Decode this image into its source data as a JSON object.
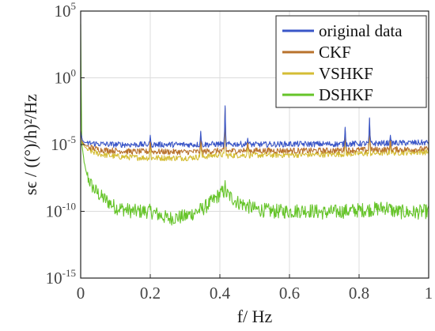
{
  "chart_data": {
    "type": "line",
    "xlabel": "f/ Hz",
    "ylabel": "sϵ / ((°)/h)²/Hz",
    "xlim": [
      0,
      1
    ],
    "ylim": [
      1e-15,
      100000.0
    ],
    "yscale": "log",
    "grid": true,
    "legend_position": "top-right",
    "x_ticks": [
      "0",
      "0.2",
      "0.4",
      "0.6",
      "0.8",
      "1"
    ],
    "y_ticks": [
      {
        "base": "10",
        "exp": "5"
      },
      {
        "base": "10",
        "exp": "0"
      },
      {
        "base": "10",
        "exp": "-5"
      },
      {
        "base": "10",
        "exp": "-10"
      },
      {
        "base": "10",
        "exp": "-15"
      }
    ],
    "series": [
      {
        "name": "original data",
        "color": "#3a56c8",
        "x": [
          0,
          0.005,
          0.01,
          0.02,
          0.04,
          0.06,
          0.1,
          0.15,
          0.2,
          0.3,
          0.35,
          0.4,
          0.415,
          0.45,
          0.5,
          0.6,
          0.7,
          0.76,
          0.83,
          0.9,
          1.0
        ],
        "y": [
          0.0001,
          2e-05,
          1.5e-05,
          1.3e-05,
          1.2e-05,
          1.1e-05,
          1e-05,
          1e-05,
          1e-05,
          1e-05,
          1e-05,
          1.1e-05,
          1e-05,
          1.1e-05,
          1e-05,
          1.1e-05,
          1.1e-05,
          1.1e-05,
          1.2e-05,
          1.3e-05,
          1.4e-05
        ],
        "peaks": [
          [
            0.2,
            5e-05
          ],
          [
            0.345,
            0.0001
          ],
          [
            0.415,
            0.008
          ],
          [
            0.48,
            3e-05
          ],
          [
            0.76,
            0.0002
          ],
          [
            0.83,
            0.001
          ],
          [
            0.89,
            5e-05
          ]
        ]
      },
      {
        "name": "CKF",
        "color": "#b8722c",
        "x": [
          0,
          0.005,
          0.01,
          0.02,
          0.04,
          0.06,
          0.1,
          0.15,
          0.2,
          0.3,
          0.35,
          0.4,
          0.415,
          0.45,
          0.5,
          0.6,
          0.7,
          0.76,
          0.83,
          0.9,
          1.0
        ],
        "y": [
          0.0001,
          1.5e-05,
          1e-05,
          7e-06,
          5e-06,
          4e-06,
          3.5e-06,
          3e-06,
          3e-06,
          2.8e-06,
          3e-06,
          3.5e-06,
          3.2e-06,
          3.5e-06,
          3.5e-06,
          3.5e-06,
          3.5e-06,
          3.8e-06,
          4e-06,
          4.3e-06,
          4.5e-06
        ],
        "peaks": [
          [
            0.2,
            3e-05
          ],
          [
            0.345,
            8e-05
          ],
          [
            0.415,
            0.006
          ],
          [
            0.48,
            2e-05
          ],
          [
            0.76,
            0.00015
          ],
          [
            0.83,
            0.0008
          ],
          [
            0.89,
            3e-05
          ]
        ]
      },
      {
        "name": "VSHKF",
        "color": "#d4bd35",
        "x": [
          0,
          0.005,
          0.01,
          0.02,
          0.04,
          0.06,
          0.1,
          0.15,
          0.2,
          0.3,
          0.35,
          0.4,
          0.415,
          0.45,
          0.5,
          0.6,
          0.7,
          0.76,
          0.83,
          0.9,
          1.0
        ],
        "y": [
          0.0001,
          1.2e-05,
          8e-06,
          4e-06,
          2.5e-06,
          1.8e-06,
          1.3e-06,
          1.1e-06,
          1e-06,
          1e-06,
          1.2e-06,
          1.8e-06,
          1.5e-06,
          1.6e-06,
          1.6e-06,
          1.7e-06,
          1.8e-06,
          2e-06,
          2.2e-06,
          2.5e-06,
          2.8e-06
        ],
        "peaks": [
          [
            0.2,
            2e-05
          ],
          [
            0.345,
            6e-05
          ],
          [
            0.415,
            0.005
          ],
          [
            0.48,
            1.5e-05
          ],
          [
            0.76,
            0.00012
          ],
          [
            0.83,
            0.0006
          ],
          [
            0.89,
            2e-05
          ]
        ]
      },
      {
        "name": "DSHKF",
        "color": "#66c42a",
        "x": [
          0,
          0.003,
          0.006,
          0.01,
          0.015,
          0.02,
          0.03,
          0.04,
          0.06,
          0.08,
          0.1,
          0.15,
          0.2,
          0.25,
          0.3,
          0.35,
          0.38,
          0.4,
          0.41,
          0.42,
          0.45,
          0.5,
          0.55,
          0.6,
          0.65,
          0.7,
          0.75,
          0.8,
          0.85,
          0.88,
          0.9,
          0.95,
          1.0
        ],
        "y": [
          10000.0,
          1e-05,
          3e-06,
          5e-07,
          1e-07,
          4e-08,
          1e-08,
          4e-09,
          1.2e-09,
          5e-10,
          2e-10,
          1e-10,
          1e-10,
          3e-11,
          4e-11,
          1.5e-10,
          6e-10,
          2e-09,
          3e-09,
          2e-09,
          5e-10,
          1.5e-10,
          1e-10,
          1e-10,
          1.2e-10,
          8e-11,
          1e-10,
          1.2e-10,
          1.5e-10,
          2e-10,
          1e-10,
          8e-11,
          1e-10
        ],
        "peaks": [
          [
            0.415,
            2e-08
          ]
        ]
      }
    ]
  }
}
